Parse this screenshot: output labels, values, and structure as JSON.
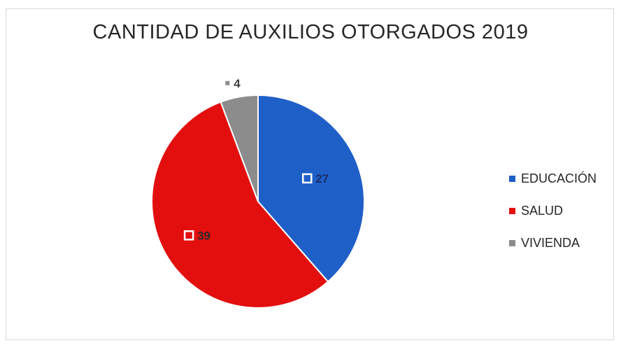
{
  "chart_data": {
    "type": "pie",
    "title": "CANTIDAD DE AUXILIOS OTORGADOS 2019",
    "categories": [
      "EDUCACIÓN",
      "SALUD",
      "VIVIENDA"
    ],
    "values": [
      27,
      39,
      4
    ],
    "colors": [
      "#1f5fc8",
      "#e30f0f",
      "#8c8c8c"
    ],
    "data_labels": [
      "27",
      "39",
      "4"
    ],
    "legend_position": "right"
  }
}
